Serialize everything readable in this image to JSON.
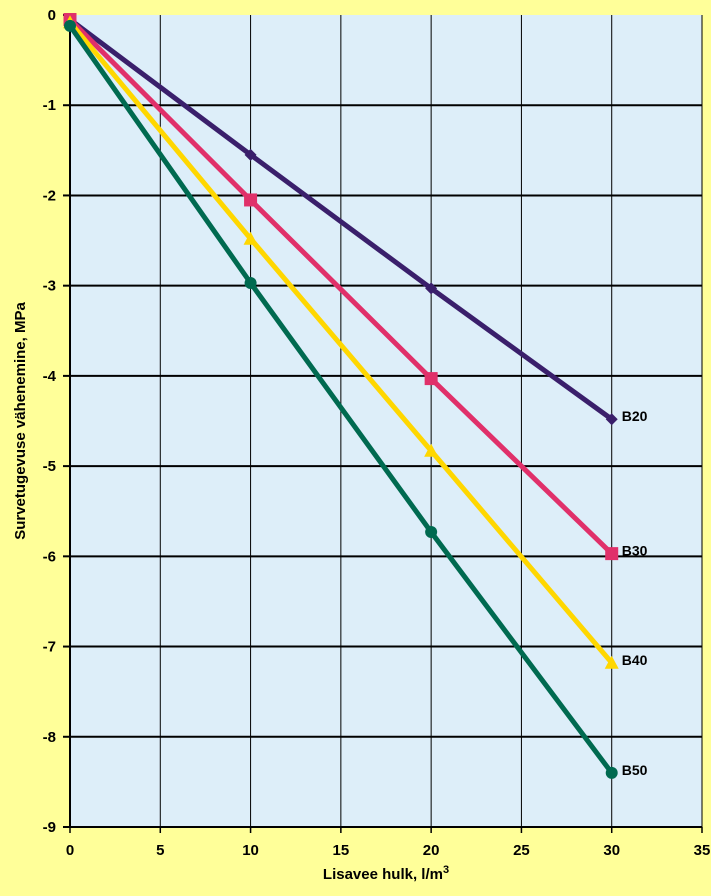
{
  "chart_data": {
    "type": "line",
    "xlabel": "Lisavee hulk, l/m",
    "xlabel_sup": "3",
    "ylabel": "Survetugevuse vähenemine, MPa",
    "xlim": [
      0,
      35
    ],
    "ylim": [
      -9,
      0
    ],
    "xticks": [
      "0",
      "5",
      "10",
      "15",
      "20",
      "25",
      "30",
      "35"
    ],
    "yticks": [
      "0",
      "-1",
      "-2",
      "-3",
      "-4",
      "-5",
      "-6",
      "-7",
      "-8",
      "-9"
    ],
    "grid": true,
    "x": [
      0,
      10,
      20,
      30
    ],
    "series": [
      {
        "name": "B20",
        "color": "#3A1F6B",
        "marker": "diamond",
        "values": [
          -0.05,
          -1.55,
          -3.03,
          -4.48
        ]
      },
      {
        "name": "B30",
        "color": "#E0306A",
        "marker": "square",
        "values": [
          -0.05,
          -2.05,
          -4.03,
          -5.97
        ]
      },
      {
        "name": "B40",
        "color": "#FFD700",
        "marker": "triangle",
        "values": [
          -0.08,
          -2.48,
          -4.83,
          -7.18
        ]
      },
      {
        "name": "B50",
        "color": "#006A50",
        "marker": "circle",
        "values": [
          -0.12,
          -2.97,
          -5.73,
          -8.4
        ]
      }
    ]
  }
}
